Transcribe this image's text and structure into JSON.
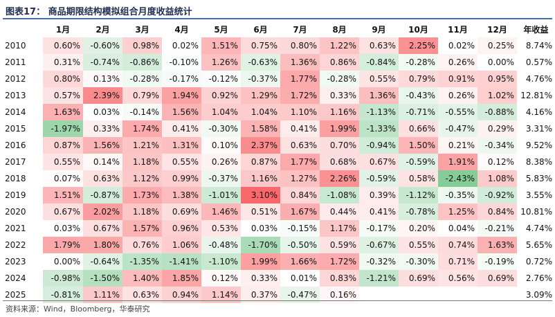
{
  "title": "图表17：  商品期限结构模拟组合月度收益统计",
  "source": "资料来源：Wind，Bloomberg，华泰研究",
  "headers": [
    "",
    "1月",
    "2月",
    "3月",
    "4月",
    "5月",
    "6月",
    "7月",
    "8月",
    "9月",
    "10月",
    "11月",
    "12月",
    "年收益"
  ],
  "chart_data": {
    "type": "heatmap",
    "title": "商品期限结构模拟组合月度收益统计",
    "columns": [
      "1月",
      "2月",
      "3月",
      "4月",
      "5月",
      "6月",
      "7月",
      "8月",
      "9月",
      "10月",
      "11月",
      "12月"
    ],
    "annual_column": "年收益",
    "color_scale": {
      "positive": "#f8696b",
      "neutral": "#ffffff",
      "negative": "#63be7b",
      "min": -3.1,
      "max": 3.1
    },
    "rows": [
      {
        "year": "2010",
        "values": [
          "0.60%",
          "-0.60%",
          "0.98%",
          "0.02%",
          "1.51%",
          "0.75%",
          "0.80%",
          "1.22%",
          "0.63%",
          "2.25%",
          "0.02%",
          "0.25%"
        ],
        "annual": "8.74%"
      },
      {
        "year": "2011",
        "values": [
          "0.31%",
          "-0.74%",
          "-0.86%",
          "-0.10%",
          "1.26%",
          "-0.63%",
          "1.36%",
          "0.86%",
          "-0.84%",
          "-0.28%",
          "0.26%",
          "0.00%"
        ],
        "annual": "0.57%"
      },
      {
        "year": "2012",
        "values": [
          "0.80%",
          "0.13%",
          "-0.28%",
          "-0.17%",
          "-0.12%",
          "-0.37%",
          "1.77%",
          "-0.28%",
          "0.55%",
          "0.79%",
          "0.91%",
          "0.95%"
        ],
        "annual": "4.76%"
      },
      {
        "year": "2013",
        "values": [
          "0.57%",
          "2.39%",
          "0.79%",
          "1.94%",
          "0.92%",
          "1.29%",
          "1.72%",
          "0.33%",
          "1.36%",
          "-0.43%",
          "0.26%",
          "1.02%"
        ],
        "annual": "12.81%"
      },
      {
        "year": "2014",
        "values": [
          "1.63%",
          "0.03%",
          "-0.14%",
          "1.56%",
          "1.04%",
          "1.04%",
          "1.10%",
          "1.16%",
          "-1.13%",
          "-0.71%",
          "-0.55%",
          "-0.88%"
        ],
        "annual": "4.16%"
      },
      {
        "year": "2015",
        "values": [
          "-1.97%",
          "0.33%",
          "1.74%",
          "0.41%",
          "-0.30%",
          "1.58%",
          "0.41%",
          "1.99%",
          "-1.33%",
          "0.66%",
          "-0.47%",
          "0.29%"
        ],
        "annual": "3.31%"
      },
      {
        "year": "2016",
        "values": [
          "0.87%",
          "1.56%",
          "1.21%",
          "1.31%",
          "0.10%",
          "2.37%",
          "0.63%",
          "0.70%",
          "-0.94%",
          "1.50%",
          "0.21%",
          "-0.34%"
        ],
        "annual": "9.52%"
      },
      {
        "year": "2017",
        "values": [
          "0.55%",
          "0.14%",
          "1.18%",
          "0.55%",
          "0.26%",
          "0.87%",
          "1.77%",
          "0.68%",
          "0.67%",
          "-0.59%",
          "1.91%",
          "0.12%"
        ],
        "annual": "8.38%"
      },
      {
        "year": "2018",
        "values": [
          "0.07%",
          "0.63%",
          "1.12%",
          "0.99%",
          "-0.37%",
          "1.16%",
          "1.27%",
          "2.26%",
          "-0.59%",
          "0.58%",
          "-2.43%",
          "1.08%"
        ],
        "annual": "5.83%"
      },
      {
        "year": "2019",
        "values": [
          "1.51%",
          "-0.87%",
          "1.73%",
          "1.38%",
          "-1.01%",
          "3.10%",
          "0.84%",
          "-1.08%",
          "0.39%",
          "-1.12%",
          "-0.35%",
          "-0.92%"
        ],
        "annual": "3.55%"
      },
      {
        "year": "2020",
        "values": [
          "0.67%",
          "2.02%",
          "1.18%",
          "0.69%",
          "1.46%",
          "0.51%",
          "1.67%",
          "0.44%",
          "0.41%",
          "-0.78%",
          "1.25%",
          "0.84%"
        ],
        "annual": "10.81%"
      },
      {
        "year": "2021",
        "values": [
          "0.03%",
          "0.67%",
          "1.57%",
          "0.96%",
          "0.53%",
          "0.03%",
          "-0.15%",
          "1.17%",
          "-0.17%",
          "0.20%",
          "0.04%",
          "-0.21%"
        ],
        "annual": "4.74%"
      },
      {
        "year": "2022",
        "values": [
          "1.79%",
          "1.80%",
          "0.76%",
          "1.06%",
          "-0.48%",
          "-1.70%",
          "-0.50%",
          "0.59%",
          "-0.67%",
          "0.55%",
          "0.74%",
          "1.63%"
        ],
        "annual": "5.65%"
      },
      {
        "year": "2023",
        "values": [
          "0.00%",
          "-0.64%",
          "-1.35%",
          "-1.41%",
          "-1.10%",
          "1.99%",
          "1.66%",
          "1.72%",
          "-0.32%",
          "-0.30%",
          "0.71%",
          "-0.19%"
        ],
        "annual": "0.72%"
      },
      {
        "year": "2024",
        "values": [
          "-0.98%",
          "-1.50%",
          "1.40%",
          "1.85%",
          "0.12%",
          "0.33%",
          "0.01%",
          "0.83%",
          "-1.21%",
          "0.69%",
          "0.56%",
          "0.69%"
        ],
        "annual": "2.76%"
      },
      {
        "year": "2025",
        "values": [
          "-0.81%",
          "1.11%",
          "0.63%",
          "0.94%",
          "1.14%",
          "0.37%",
          "-0.47%",
          "0.16%",
          "",
          "",
          "",
          ""
        ],
        "annual": "3.09%"
      }
    ]
  }
}
